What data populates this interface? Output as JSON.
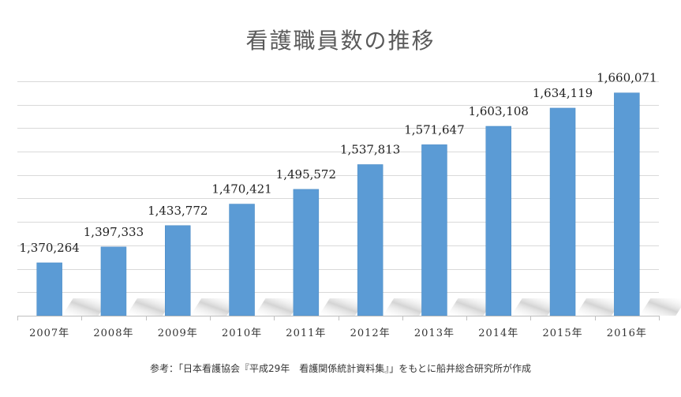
{
  "chart_data": {
    "type": "bar",
    "title": "看護職員数の推移",
    "categories": [
      "2007年",
      "2008年",
      "2009年",
      "2010年",
      "2011年",
      "2012年",
      "2013年",
      "2014年",
      "2015年",
      "2016年"
    ],
    "values": [
      1370264,
      1397333,
      1433772,
      1470421,
      1495572,
      1537813,
      1571647,
      1603108,
      1634119,
      1660071
    ],
    "data_labels": [
      "1,370,264",
      "1,397,333",
      "1,433,772",
      "1,470,421",
      "1,495,572",
      "1,537,813",
      "1,571,647",
      "1,603,108",
      "1,634,119",
      "1,660,071"
    ],
    "xlabel": "",
    "ylabel": "",
    "ylim": [
      1280000,
      1700000
    ],
    "grid": true,
    "bar_color": "#5b9bd5",
    "source": "参考：「日本看護協会『平成29年　看護関係統計資料集』」をもとに船井総合研究所が作成"
  }
}
